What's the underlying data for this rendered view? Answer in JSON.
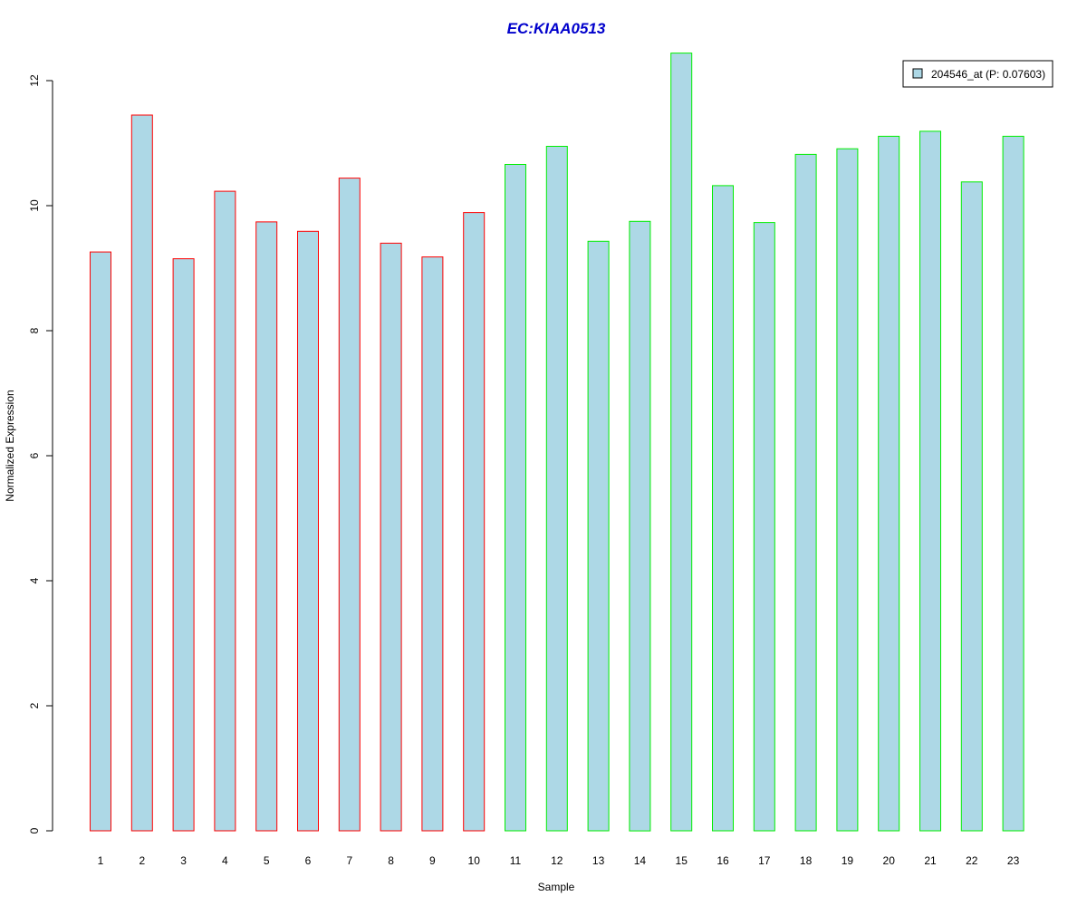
{
  "chart_data": {
    "type": "bar",
    "title": "EC:KIAA0513",
    "xlabel": "Sample",
    "ylabel": "Normalized Expression",
    "categories": [
      "1",
      "2",
      "3",
      "4",
      "5",
      "6",
      "7",
      "8",
      "9",
      "10",
      "11",
      "12",
      "13",
      "14",
      "15",
      "16",
      "17",
      "18",
      "19",
      "20",
      "21",
      "22",
      "23"
    ],
    "series": [
      {
        "name": "204546_at (P: 0.07603)",
        "values": [
          9.26,
          11.45,
          9.15,
          10.23,
          9.74,
          9.59,
          10.44,
          9.4,
          9.18,
          9.89,
          10.66,
          10.95,
          9.43,
          9.75,
          12.44,
          10.32,
          9.73,
          10.82,
          10.91,
          11.11,
          11.19,
          10.38,
          11.11
        ]
      }
    ],
    "groups": [
      {
        "samples": [
          1,
          2,
          3,
          4,
          5,
          6,
          7,
          8,
          9,
          10
        ],
        "border_color": "#ff0000"
      },
      {
        "samples": [
          11,
          12,
          13,
          14,
          15,
          16,
          17,
          18,
          19,
          20,
          21,
          22,
          23
        ],
        "border_color": "#00ee00"
      }
    ],
    "bar_fill": "#add8e6",
    "title_color": "#0000cc",
    "yticks": [
      0,
      2,
      4,
      6,
      8,
      10,
      12
    ],
    "ylim": [
      0,
      12.44
    ],
    "grid": false,
    "legend_position": "top-right"
  }
}
